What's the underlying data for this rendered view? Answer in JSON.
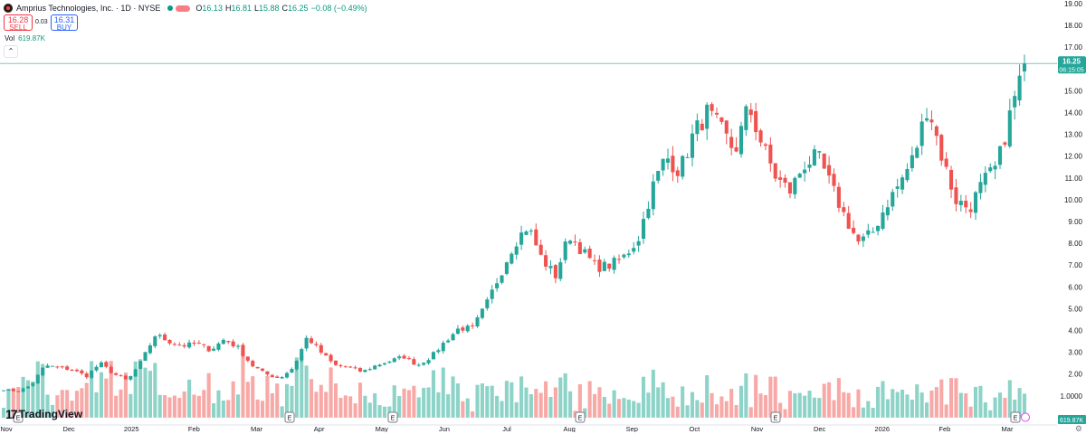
{
  "legend": {
    "symbol_title": "Amprius Technologies, Inc. · 1D · NYSE",
    "open_label": "O",
    "open": "16.13",
    "high_label": "H",
    "high": "16.81",
    "low_label": "L",
    "low": "15.88",
    "close_label": "C",
    "close": "16.25",
    "change": "−0.08 (−0.49%)"
  },
  "trade": {
    "sell_price": "16.28",
    "sell_label": "SELL",
    "spread": "0.03",
    "buy_price": "16.31",
    "buy_label": "BUY"
  },
  "volume_legend": {
    "label": "Vol",
    "value": "619.87K"
  },
  "price_axis": {
    "ticks": [
      "19.00",
      "18.00",
      "17.00",
      "16.00",
      "15.00",
      "14.00",
      "13.00",
      "12.00",
      "11.00",
      "10.00",
      "9.00",
      "8.00",
      "7.00",
      "6.00",
      "5.00",
      "4.00",
      "3.00",
      "2.00",
      "1.0000",
      "0.0000"
    ],
    "last_price": "16.25",
    "countdown": "06:15:05",
    "volume_badge": "619.87K"
  },
  "time_axis": {
    "labels": [
      "Nov",
      "Dec",
      "2025",
      "Feb",
      "Mar",
      "Apr",
      "May",
      "Jun",
      "Jul",
      "Aug",
      "Sep",
      "Oct",
      "Nov",
      "Dec",
      "2026",
      "Feb",
      "Mar"
    ]
  },
  "event_markers": [
    "E",
    "E",
    "E",
    "E",
    "E",
    "E"
  ],
  "branding": "TradingView",
  "colors": {
    "up": "#26a69a",
    "down": "#ef5350",
    "up_volume": "#8dd3c7",
    "down_volume": "#f7a9a7",
    "price_line": "#26a69a"
  },
  "chart_data": {
    "type": "candlestick",
    "title": "Amprius Technologies, Inc. · 1D · NYSE",
    "price_range": [
      0,
      19
    ],
    "volume_legend_label": "Vol",
    "price_points": [
      {
        "x": "Nov",
        "y": 1.3
      },
      {
        "x": "Nov",
        "y": 1.2
      },
      {
        "x": "Nov",
        "y": 1.5
      },
      {
        "x": "Nov",
        "y": 2.4
      },
      {
        "x": "Nov",
        "y": 2.3
      },
      {
        "x": "Dec",
        "y": 2.2
      },
      {
        "x": "Dec",
        "y": 1.9
      },
      {
        "x": "Dec",
        "y": 2.5
      },
      {
        "x": "Dec",
        "y": 2.0
      },
      {
        "x": "Dec",
        "y": 1.7
      },
      {
        "x": "2025",
        "y": 2.6
      },
      {
        "x": "2025",
        "y": 3.8
      },
      {
        "x": "2025",
        "y": 3.5
      },
      {
        "x": "2025",
        "y": 3.3
      },
      {
        "x": "Feb",
        "y": 3.4
      },
      {
        "x": "Feb",
        "y": 3.1
      },
      {
        "x": "Feb",
        "y": 3.6
      },
      {
        "x": "Feb",
        "y": 3.2
      },
      {
        "x": "Mar",
        "y": 2.4
      },
      {
        "x": "Mar",
        "y": 2.0
      },
      {
        "x": "Mar",
        "y": 1.8
      },
      {
        "x": "Mar",
        "y": 2.3
      },
      {
        "x": "Apr",
        "y": 3.7
      },
      {
        "x": "Apr",
        "y": 3.0
      },
      {
        "x": "Apr",
        "y": 2.4
      },
      {
        "x": "Apr",
        "y": 2.3
      },
      {
        "x": "May",
        "y": 2.1
      },
      {
        "x": "May",
        "y": 2.4
      },
      {
        "x": "May",
        "y": 2.6
      },
      {
        "x": "May",
        "y": 2.8
      },
      {
        "x": "Jun",
        "y": 2.4
      },
      {
        "x": "Jun",
        "y": 2.8
      },
      {
        "x": "Jun",
        "y": 3.5
      },
      {
        "x": "Jun",
        "y": 4.1
      },
      {
        "x": "Jul",
        "y": 4.1
      },
      {
        "x": "Jul",
        "y": 5.2
      },
      {
        "x": "Jul",
        "y": 6.6
      },
      {
        "x": "Jul",
        "y": 8.0
      },
      {
        "x": "Jul",
        "y": 8.8
      },
      {
        "x": "Aug",
        "y": 7.3
      },
      {
        "x": "Aug",
        "y": 6.5
      },
      {
        "x": "Aug",
        "y": 8.4
      },
      {
        "x": "Aug",
        "y": 7.6
      },
      {
        "x": "Aug",
        "y": 6.9
      },
      {
        "x": "Sep",
        "y": 7.0
      },
      {
        "x": "Sep",
        "y": 7.4
      },
      {
        "x": "Sep",
        "y": 8.2
      },
      {
        "x": "Sep",
        "y": 10.5
      },
      {
        "x": "Sep",
        "y": 12.0
      },
      {
        "x": "Oct",
        "y": 11.3
      },
      {
        "x": "Oct",
        "y": 13.0
      },
      {
        "x": "Oct",
        "y": 14.0
      },
      {
        "x": "Oct",
        "y": 13.2
      },
      {
        "x": "Oct",
        "y": 12.2
      },
      {
        "x": "Oct",
        "y": 14.3
      },
      {
        "x": "Nov",
        "y": 12.5
      },
      {
        "x": "Nov",
        "y": 11.0
      },
      {
        "x": "Nov",
        "y": 10.4
      },
      {
        "x": "Nov",
        "y": 11.6
      },
      {
        "x": "Dec",
        "y": 12.0
      },
      {
        "x": "Dec",
        "y": 10.6
      },
      {
        "x": "Dec",
        "y": 9.2
      },
      {
        "x": "Dec",
        "y": 8.0
      },
      {
        "x": "2026",
        "y": 8.5
      },
      {
        "x": "2026",
        "y": 9.8
      },
      {
        "x": "2026",
        "y": 10.8
      },
      {
        "x": "2026",
        "y": 12.0
      },
      {
        "x": "Feb",
        "y": 14.4
      },
      {
        "x": "Feb",
        "y": 12.0
      },
      {
        "x": "Feb",
        "y": 10.0
      },
      {
        "x": "Feb",
        "y": 9.6
      },
      {
        "x": "Feb",
        "y": 10.8
      },
      {
        "x": "Mar",
        "y": 11.5
      },
      {
        "x": "Mar",
        "y": 14.0
      },
      {
        "x": "Mar",
        "y": 16.25
      }
    ]
  }
}
